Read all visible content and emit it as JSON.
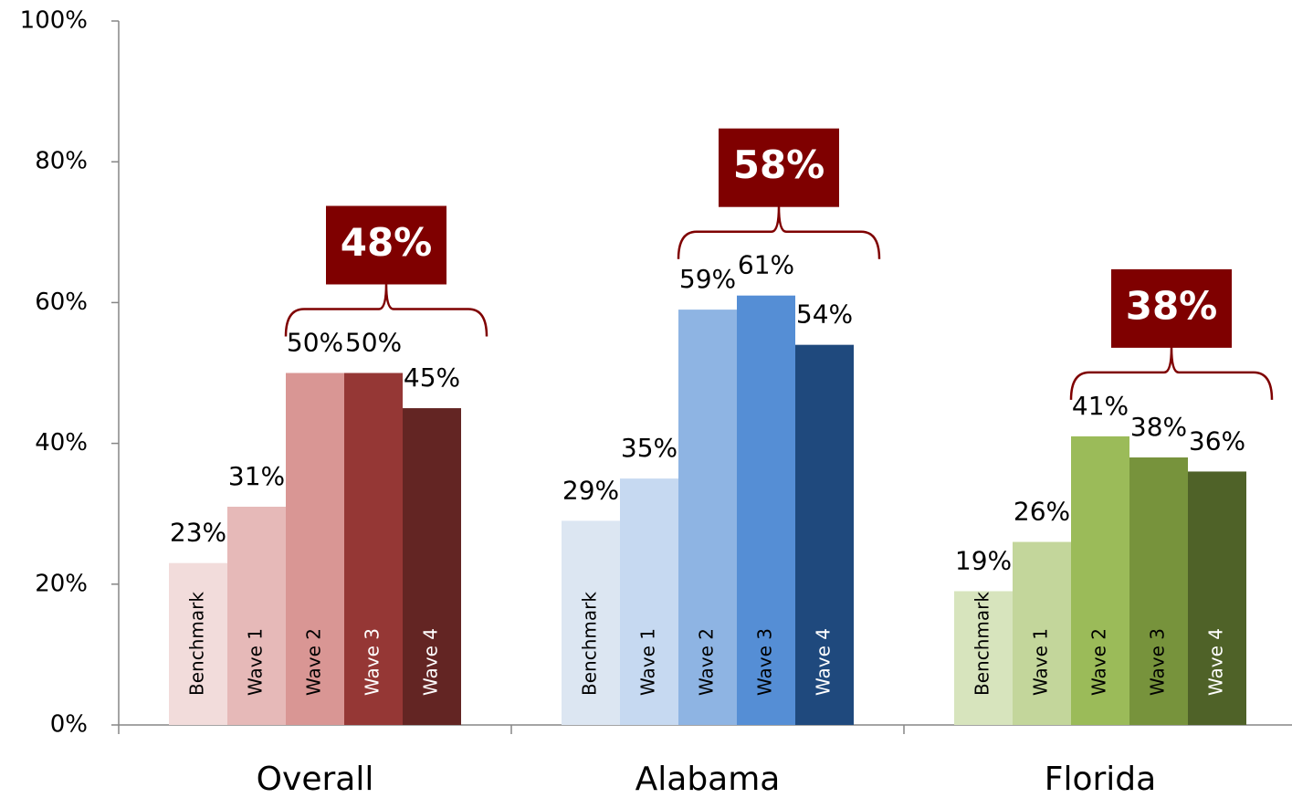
{
  "chart_data": {
    "type": "grouped_bar",
    "categories": [
      "Overall",
      "Alabama",
      "Florida"
    ],
    "series": [
      {
        "name": "Benchmark",
        "colors": [
          "#f2dcdb",
          "#dce6f2",
          "#d7e4bd"
        ],
        "values": [
          23,
          29,
          19
        ],
        "value_labels": [
          "23%",
          "29%",
          "19%"
        ]
      },
      {
        "name": "Wave 1",
        "colors": [
          "#e6b9b8",
          "#c6d9f1",
          "#c3d69b"
        ],
        "values": [
          31,
          35,
          26
        ],
        "value_labels": [
          "31%",
          "35%",
          "26%"
        ]
      },
      {
        "name": "Wave 2",
        "colors": [
          "#d99694",
          "#8eb4e3",
          "#9bbb59"
        ],
        "values": [
          50,
          59,
          41
        ],
        "value_labels": [
          "50%",
          "59%",
          "41%"
        ]
      },
      {
        "name": "Wave 3",
        "colors": [
          "#953735",
          "#558ed5",
          "#77933c"
        ],
        "values": [
          50,
          61,
          38
        ],
        "value_labels": [
          "50%",
          "61%",
          "38%"
        ]
      },
      {
        "name": "Wave 4",
        "colors": [
          "#632523",
          "#1f497d",
          "#4f6228"
        ],
        "values": [
          45,
          54,
          36
        ],
        "value_labels": [
          "45%",
          "54%",
          "36%"
        ]
      }
    ],
    "annotations": [
      "48%",
      "58%",
      "38%"
    ],
    "annotation_color": "#7f0000",
    "ylim": [
      0,
      100
    ],
    "yticks": [
      {
        "value": 0,
        "label": "0%"
      },
      {
        "value": 20,
        "label": "20%"
      },
      {
        "value": 40,
        "label": "40%"
      },
      {
        "value": 60,
        "label": "60%"
      },
      {
        "value": 80,
        "label": "80%"
      },
      {
        "value": 100,
        "label": "100%"
      }
    ]
  }
}
